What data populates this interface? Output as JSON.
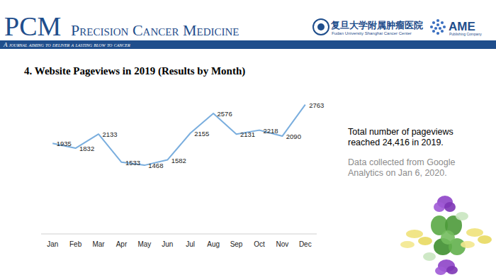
{
  "header": {
    "journal_abbr": "PCM",
    "journal_name": "Precision Cancer Medicine",
    "tagline": "A journal aiming to deliver a lasting blow to cancer",
    "partner_cn": "复旦大学附属肿瘤医院",
    "partner_en": "Fudan University Shanghai Cancer Center",
    "publisher": "AME",
    "publisher_sub": "Publishing Company"
  },
  "chart_data": {
    "type": "line",
    "title": "4. Website Pageviews in 2019 (Results by Month)",
    "categories": [
      "Jan",
      "Feb",
      "Mar",
      "Apr",
      "May",
      "Jun",
      "Jul",
      "Aug",
      "Sep",
      "Oct",
      "Nov",
      "Dec"
    ],
    "values": [
      1935,
      1832,
      2133,
      1533,
      1468,
      1582,
      2155,
      2576,
      2131,
      2218,
      2090,
      2763
    ],
    "color": "#7aaede",
    "ylim": [
      0,
      3000
    ],
    "grid": false,
    "data_labels": true,
    "tick_labels": "x",
    "annotations": [
      {
        "lines": [
          "Total number of pageviews",
          "reached 24,416 in 2019."
        ]
      },
      {
        "lines": [
          "Data collected from Google",
          "Analytics on Jan 6, 2020."
        ]
      }
    ]
  }
}
